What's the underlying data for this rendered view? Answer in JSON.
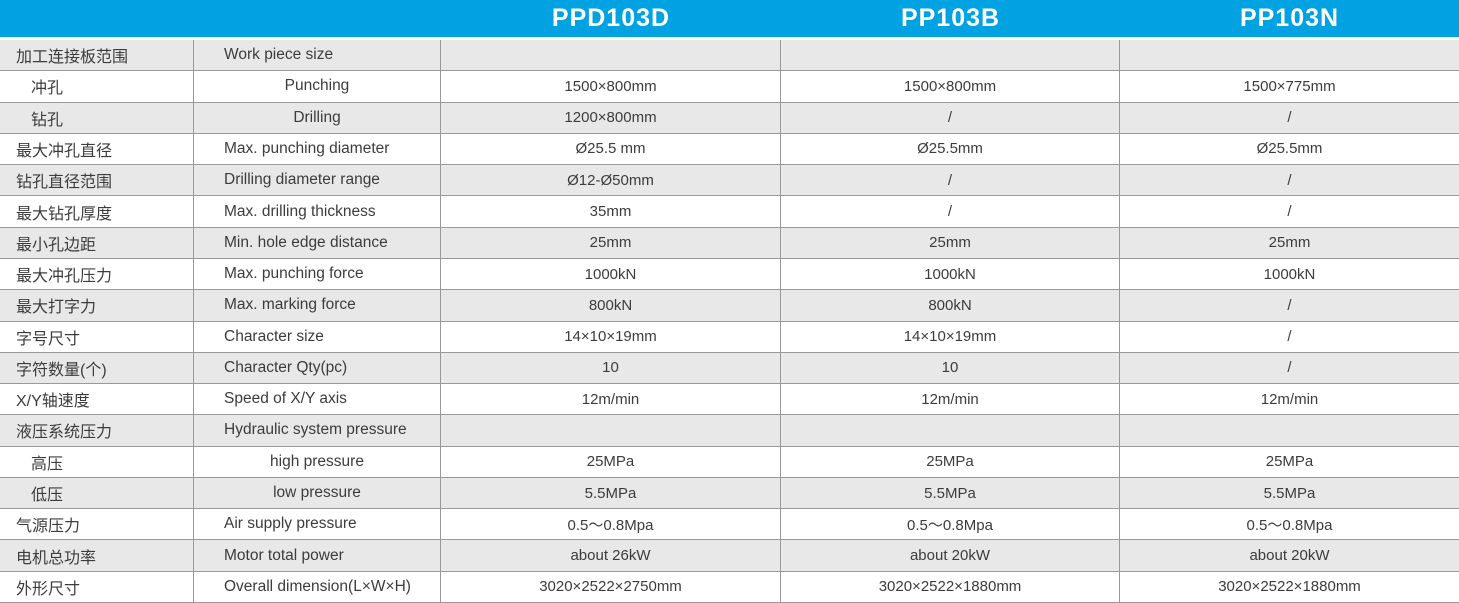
{
  "colors": {
    "header_bg": "#00a2e1",
    "header_text": "#ffffff",
    "row_shaded_bg": "#e8e8e8",
    "row_plain_bg": "#ffffff",
    "grid_line": "#999999",
    "text": "#3c3c3c"
  },
  "header": {
    "models": [
      "PPD103D",
      "PP103B",
      "PP103N"
    ]
  },
  "rows": [
    {
      "zh": "加工连接板范围",
      "en": "Work piece size",
      "indent": false,
      "en_center": false,
      "shaded": true,
      "values": [
        "",
        "",
        ""
      ]
    },
    {
      "zh": "冲孔",
      "en": "Punching",
      "indent": true,
      "en_center": true,
      "shaded": false,
      "values": [
        "1500×800mm",
        "1500×800mm",
        "1500×775mm"
      ]
    },
    {
      "zh": "钻孔",
      "en": "Drilling",
      "indent": true,
      "en_center": true,
      "shaded": true,
      "values": [
        "1200×800mm",
        "/",
        "/"
      ]
    },
    {
      "zh": "最大冲孔直径",
      "en": "Max. punching diameter",
      "indent": false,
      "en_center": false,
      "shaded": false,
      "values": [
        "Ø25.5 mm",
        "Ø25.5mm",
        "Ø25.5mm"
      ]
    },
    {
      "zh": "钻孔直径范围",
      "en": "Drilling diameter range",
      "indent": false,
      "en_center": false,
      "shaded": true,
      "values": [
        "Ø12-Ø50mm",
        "/",
        "/"
      ]
    },
    {
      "zh": "最大钻孔厚度",
      "en": "Max. drilling thickness",
      "indent": false,
      "en_center": false,
      "shaded": false,
      "values": [
        "35mm",
        "/",
        "/"
      ]
    },
    {
      "zh": "最小孔边距",
      "en": "Min. hole edge distance",
      "indent": false,
      "en_center": false,
      "shaded": true,
      "values": [
        "25mm",
        "25mm",
        "25mm"
      ]
    },
    {
      "zh": "最大冲孔压力",
      "en": "Max. punching force",
      "indent": false,
      "en_center": false,
      "shaded": false,
      "values": [
        "1000kN",
        "1000kN",
        "1000kN"
      ]
    },
    {
      "zh": "最大打字力",
      "en": "Max. marking force",
      "indent": false,
      "en_center": false,
      "shaded": true,
      "values": [
        "800kN",
        "800kN",
        "/"
      ]
    },
    {
      "zh": "字号尺寸",
      "en": "Character size",
      "indent": false,
      "en_center": false,
      "shaded": false,
      "values": [
        "14×10×19mm",
        "14×10×19mm",
        "/"
      ]
    },
    {
      "zh": "字符数量(个)",
      "en": "Character Qty(pc)",
      "indent": false,
      "en_center": false,
      "shaded": true,
      "values": [
        "10",
        "10",
        "/"
      ]
    },
    {
      "zh": "X/Y轴速度",
      "en": "Speed of X/Y axis",
      "indent": false,
      "en_center": false,
      "shaded": false,
      "values": [
        "12m/min",
        "12m/min",
        "12m/min"
      ]
    },
    {
      "zh": "液压系统压力",
      "en": "Hydraulic system pressure",
      "indent": false,
      "en_center": false,
      "shaded": true,
      "values": [
        "",
        "",
        ""
      ]
    },
    {
      "zh": "高压",
      "en": "high pressure",
      "indent": true,
      "en_center": true,
      "shaded": false,
      "values": [
        "25MPa",
        "25MPa",
        "25MPa"
      ]
    },
    {
      "zh": "低压",
      "en": "low pressure",
      "indent": true,
      "en_center": true,
      "shaded": true,
      "values": [
        "5.5MPa",
        "5.5MPa",
        "5.5MPa"
      ]
    },
    {
      "zh": "气源压力",
      "en": "Air supply pressure",
      "indent": false,
      "en_center": false,
      "shaded": false,
      "values": [
        "0.5～0.8Mpa",
        "0.5～0.8Mpa",
        "0.5～0.8Mpa"
      ]
    },
    {
      "zh": "电机总功率",
      "en": "Motor total power",
      "indent": false,
      "en_center": false,
      "shaded": true,
      "values": [
        "about 26kW",
        "about 20kW",
        "about 20kW"
      ]
    },
    {
      "zh": "外形尺寸",
      "en": "Overall dimension(L×W×H)",
      "indent": false,
      "en_center": false,
      "shaded": false,
      "values": [
        "3020×2522×2750mm",
        "3020×2522×1880mm",
        "3020×2522×1880mm"
      ]
    }
  ]
}
